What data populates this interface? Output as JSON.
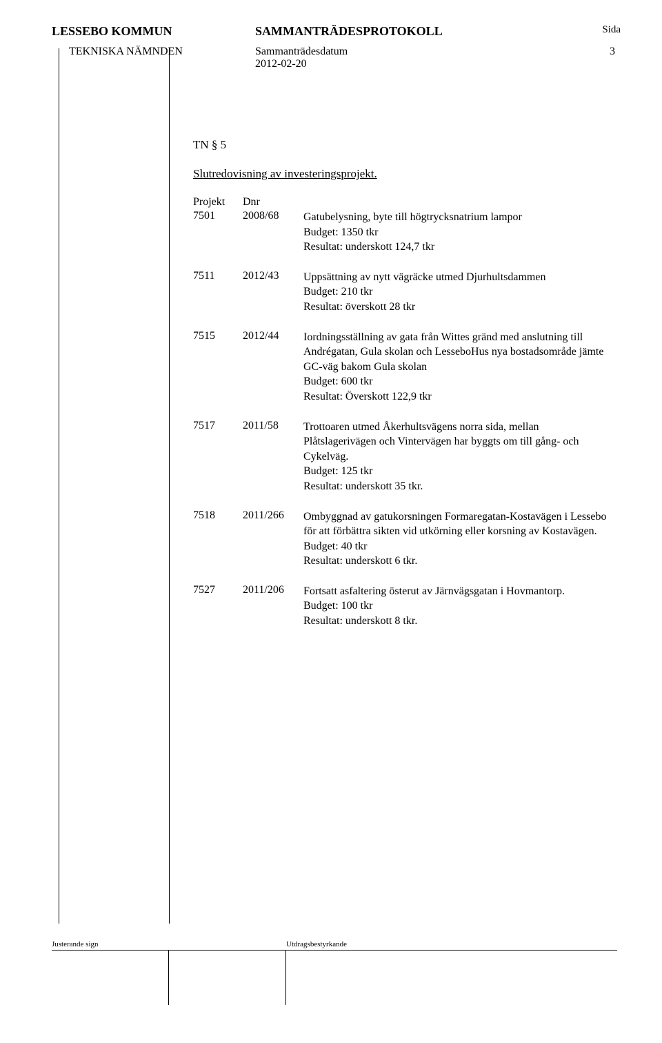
{
  "header": {
    "org": "LESSEBO KOMMUN",
    "title": "SAMMANTRÄDESPROTOKOLL",
    "sida_label": "Sida",
    "committee": "TEKNISKA NÄMNDEN",
    "date_label": "Sammanträdesdatum",
    "date": "2012-02-20",
    "page_no": "3"
  },
  "section": {
    "heading": "TN § 5",
    "title": "Slutredovisning av investeringsprojekt."
  },
  "table_headers": {
    "projekt": "Projekt",
    "dnr": "Dnr"
  },
  "projects": [
    {
      "projekt": "7501",
      "dnr": "2008/68",
      "lines": [
        "Gatubelysning, byte till högtrycksnatrium lampor",
        "Budget: 1350 tkr",
        "Resultat: underskott 124,7 tkr"
      ]
    },
    {
      "projekt": "7511",
      "dnr": "2012/43",
      "lines": [
        "Uppsättning av nytt vägräcke utmed Djurhultsdammen",
        "Budget: 210 tkr",
        "Resultat: överskott 28 tkr"
      ]
    },
    {
      "projekt": "7515",
      "dnr": "2012/44",
      "lines": [
        "Iordningsställning av gata från Wittes gränd med anslutning till Andrégatan, Gula skolan och LesseboHus nya bostadsområde jämte GC-väg bakom Gula skolan",
        "Budget: 600 tkr",
        "Resultat: Överskott 122,9 tkr"
      ]
    },
    {
      "projekt": "7517",
      "dnr": "2011/58",
      "lines": [
        "Trottoaren utmed Åkerhultsvägens norra sida, mellan Plåtslagerivägen och Vintervägen har byggts om till gång- och Cykelväg.",
        "Budget: 125 tkr",
        "Resultat: underskott 35 tkr."
      ]
    },
    {
      "projekt": "7518",
      "dnr": "2011/266",
      "lines": [
        "Ombyggnad av gatukorsningen Formaregatan-Kostavägen i Lessebo för att förbättra sikten vid utkörning eller korsning av Kostavägen.",
        "Budget: 40 tkr",
        "Resultat: underskott 6 tkr."
      ]
    },
    {
      "projekt": "7527",
      "dnr": "2011/206",
      "lines": [
        "Fortsatt asfaltering österut av Järnvägsgatan i Hovmantorp.",
        "Budget: 100 tkr",
        "Resultat: underskott 8 tkr."
      ]
    }
  ],
  "footer": {
    "left_label": "Justerande sign",
    "right_label": "Utdragsbestyrkande"
  }
}
